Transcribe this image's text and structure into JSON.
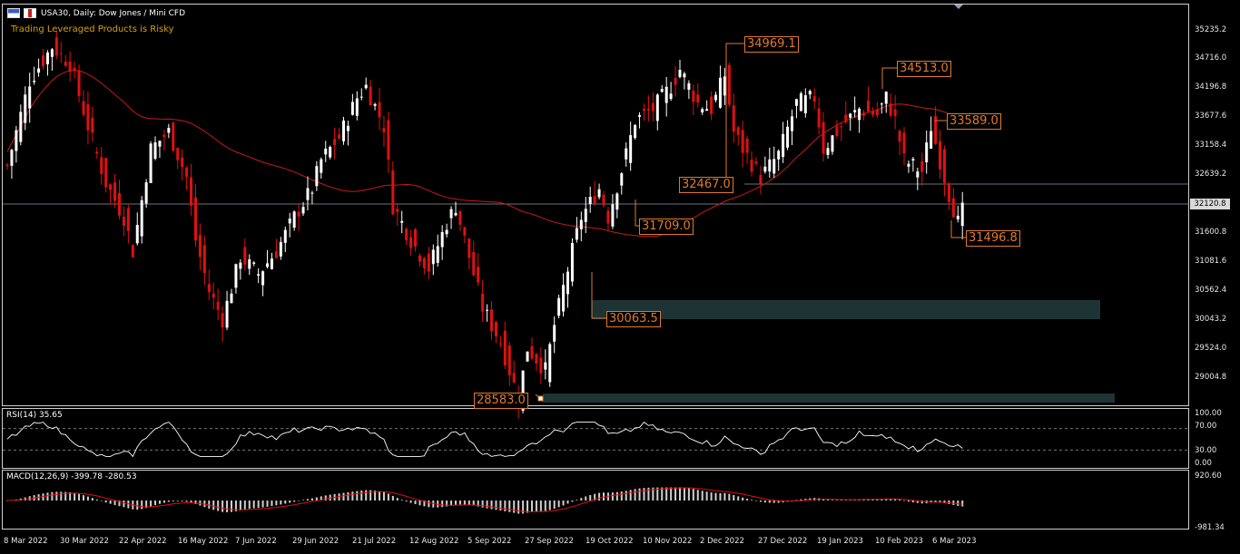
{
  "header": {
    "title": "USA30, Daily:  Dow Jones / Mini CFD",
    "warning": "Trading Leveraged Products is Risky"
  },
  "colors": {
    "bull": "#ffffff",
    "bear": "#e01010",
    "ma": "#c81a1a",
    "annotation": "#e07a2c",
    "zone": "#1e3434"
  },
  "price_scale": [
    "35235.2",
    "34716.0",
    "34196.8",
    "33677.6",
    "33158.4",
    "32639.2",
    "32120.8",
    "31600.8",
    "31081.6",
    "30562.4",
    "30043.2",
    "29524.0",
    "29004.8"
  ],
  "current_price": "32120.8",
  "annotations": {
    "a1": "34969.1",
    "a2": "34513.0",
    "a3": "33589.0",
    "a4": "32467.0",
    "a5": "31709.0",
    "a6": "31496.8",
    "a7": "30063.5",
    "a8": "28583.0"
  },
  "rsi": {
    "label": "RSI(14) 35.65",
    "scale": [
      "100.00",
      "70.00",
      "30.00",
      "0.00"
    ]
  },
  "macd": {
    "label": "MACD(12,26,9) -399.78 -280.53",
    "scale": [
      "920.60",
      "-981.34"
    ]
  },
  "dates": [
    "8 Mar 2022",
    "30 Mar 2022",
    "22 Apr 2022",
    "16 May 2022",
    "7 Jun 2022",
    "29 Jun 2022",
    "21 Jul 2022",
    "12 Aug 2022",
    "5 Sep 2022",
    "27 Sep 2022",
    "19 Oct 2022",
    "10 Nov 2022",
    "2 Dec 2022",
    "27 Dec 2022",
    "19 Jan 2023",
    "10 Feb 2023",
    "6 Mar 2023"
  ],
  "chart_data": {
    "type": "candlestick",
    "symbol": "USA30",
    "timeframe": "Daily",
    "ylim": [
      28700,
      35400
    ],
    "price_path": [
      [
        0,
        32800
      ],
      [
        5,
        34300
      ],
      [
        10,
        34900
      ],
      [
        14,
        34600
      ],
      [
        18,
        33500
      ],
      [
        22,
        32500
      ],
      [
        26,
        31900
      ],
      [
        28,
        31300
      ],
      [
        32,
        33100
      ],
      [
        36,
        33400
      ],
      [
        40,
        32600
      ],
      [
        42,
        31500
      ],
      [
        45,
        30600
      ],
      [
        48,
        30100
      ],
      [
        52,
        31200
      ],
      [
        56,
        30900
      ],
      [
        60,
        31300
      ],
      [
        64,
        31900
      ],
      [
        68,
        32400
      ],
      [
        70,
        32900
      ],
      [
        74,
        33300
      ],
      [
        78,
        34000
      ],
      [
        80,
        34200
      ],
      [
        84,
        33500
      ],
      [
        86,
        32100
      ],
      [
        90,
        31500
      ],
      [
        94,
        31000
      ],
      [
        98,
        31800
      ],
      [
        100,
        32100
      ],
      [
        103,
        31200
      ],
      [
        106,
        30300
      ],
      [
        110,
        29700
      ],
      [
        112,
        29200
      ],
      [
        114,
        28700
      ],
      [
        116,
        29600
      ],
      [
        118,
        29400
      ],
      [
        120,
        29200
      ],
      [
        122,
        30000
      ],
      [
        126,
        31300
      ],
      [
        128,
        31900
      ],
      [
        132,
        32400
      ],
      [
        134,
        31900
      ],
      [
        138,
        33000
      ],
      [
        140,
        33600
      ],
      [
        144,
        33800
      ],
      [
        148,
        34200
      ],
      [
        150,
        34500
      ],
      [
        154,
        33900
      ],
      [
        157,
        33800
      ],
      [
        160,
        34400
      ],
      [
        162,
        33400
      ],
      [
        164,
        33100
      ],
      [
        168,
        32600
      ],
      [
        172,
        33000
      ],
      [
        176,
        33900
      ],
      [
        180,
        34000
      ],
      [
        182,
        33100
      ],
      [
        186,
        33500
      ],
      [
        190,
        33800
      ],
      [
        194,
        33700
      ],
      [
        196,
        34000
      ],
      [
        198,
        33600
      ],
      [
        200,
        32900
      ],
      [
        204,
        32700
      ],
      [
        206,
        33500
      ],
      [
        208,
        32900
      ],
      [
        210,
        32300
      ],
      [
        212,
        31800
      ],
      [
        213,
        32000
      ]
    ]
  }
}
